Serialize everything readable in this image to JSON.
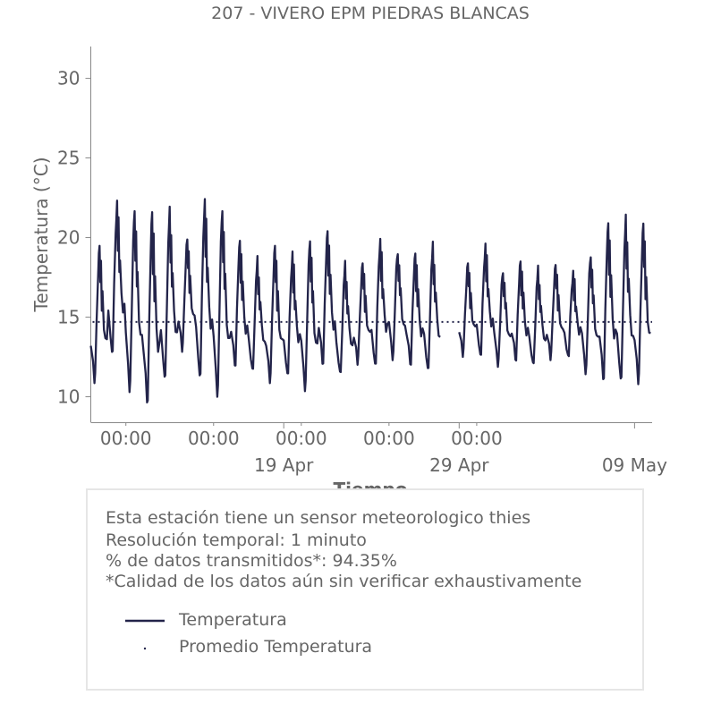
{
  "chart_data": {
    "type": "line",
    "title": "207 - VIVERO EPM PIEDRAS BLANCAS",
    "xlabel": "Tiempo",
    "ylabel": "Temperatura (°C)",
    "ylim": [
      8.4,
      32
    ],
    "yticks": [
      10,
      15,
      20,
      25,
      30
    ],
    "x_tick_labels": [
      "00:00",
      "00:00",
      "00:00",
      "00:00",
      "00:00"
    ],
    "x_date_labels": [
      "19 Apr",
      "29 Apr",
      "09 May"
    ],
    "grid": false,
    "series": [
      {
        "name": "Temperatura",
        "color": "#23244a",
        "x_start": "2024-04-08 00:00",
        "x_end": "2024-05-10 00:00",
        "daily": [
          {
            "date": "2024-04-08",
            "min": 10.8,
            "max": 19.6
          },
          {
            "date": "2024-04-09",
            "min": 12.5,
            "max": 22.2
          },
          {
            "date": "2024-04-10",
            "min": 10.3,
            "max": 21.9
          },
          {
            "date": "2024-04-11",
            "min": 9.4,
            "max": 21.6
          },
          {
            "date": "2024-04-12",
            "min": 10.8,
            "max": 21.7
          },
          {
            "date": "2024-04-13",
            "min": 12.8,
            "max": 20.0
          },
          {
            "date": "2024-04-14",
            "min": 11.0,
            "max": 22.3
          },
          {
            "date": "2024-04-15",
            "min": 10.0,
            "max": 21.9
          },
          {
            "date": "2024-04-16",
            "min": 11.8,
            "max": 19.8
          },
          {
            "date": "2024-04-17",
            "min": 11.4,
            "max": 18.6
          },
          {
            "date": "2024-04-18",
            "min": 10.8,
            "max": 19.6
          },
          {
            "date": "2024-04-19",
            "min": 11.2,
            "max": 19.0
          },
          {
            "date": "2024-04-20",
            "min": 10.4,
            "max": 20.0
          },
          {
            "date": "2024-04-21",
            "min": 11.9,
            "max": 20.4
          },
          {
            "date": "2024-04-22",
            "min": 11.2,
            "max": 18.3
          },
          {
            "date": "2024-04-23",
            "min": 12.0,
            "max": 18.5
          },
          {
            "date": "2024-04-24",
            "min": 11.8,
            "max": 19.8
          },
          {
            "date": "2024-04-25",
            "min": 12.4,
            "max": 19.2
          },
          {
            "date": "2024-04-26",
            "min": 11.9,
            "max": 19.0
          },
          {
            "date": "2024-04-27",
            "min": 11.4,
            "max": 19.5
          },
          {
            "date": "2024-04-29",
            "min": 12.5,
            "max": 18.5
          },
          {
            "date": "2024-04-30",
            "min": 12.4,
            "max": 19.5
          },
          {
            "date": "2024-05-01",
            "min": 12.0,
            "max": 18.0
          },
          {
            "date": "2024-05-02",
            "min": 12.2,
            "max": 18.5
          },
          {
            "date": "2024-05-03",
            "min": 11.8,
            "max": 18.0
          },
          {
            "date": "2024-05-04",
            "min": 12.3,
            "max": 18.4
          },
          {
            "date": "2024-05-05",
            "min": 12.4,
            "max": 17.8
          },
          {
            "date": "2024-05-06",
            "min": 11.5,
            "max": 19.0
          },
          {
            "date": "2024-05-07",
            "min": 10.9,
            "max": 20.9
          },
          {
            "date": "2024-05-08",
            "min": 10.7,
            "max": 21.2
          },
          {
            "date": "2024-05-09",
            "min": 10.7,
            "max": 21.0
          }
        ]
      },
      {
        "name": "Promedio Temperatura",
        "color": "#23244a",
        "style": "dotted",
        "value": 14.7
      }
    ]
  },
  "info": {
    "line1": "Esta estación tiene un sensor meteorologico thies",
    "line2": "Resolución temporal: 1 minuto",
    "line3": "% de datos transmitidos*: 94.35%",
    "line4": "*Calidad de los datos aún sin verificar exhaustivamente"
  },
  "legend": {
    "temp_label": "Temperatura",
    "avg_label": "Promedio Temperatura"
  }
}
